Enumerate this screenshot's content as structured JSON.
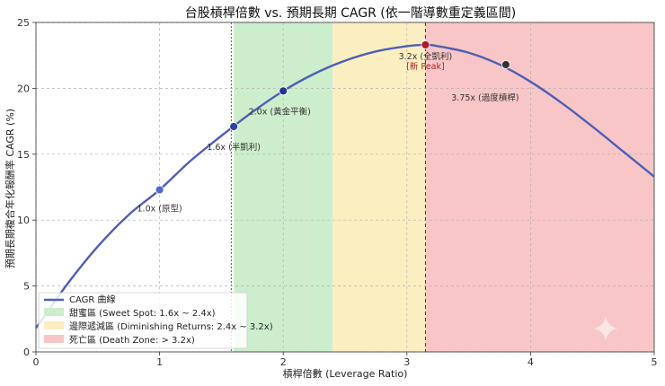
{
  "chart_data": {
    "type": "line",
    "title": "台股槓桿倍數 vs. 預期長期 CAGR (依一階導數重定義區間)",
    "xlabel": "槓桿倍數 (Leverage Ratio)",
    "ylabel": "預期長期複合年化報酬率 CAGR (%)",
    "xlim": [
      0,
      5
    ],
    "ylim": [
      0,
      25
    ],
    "xticks": [
      "0",
      "1",
      "2",
      "3",
      "4",
      "5"
    ],
    "yticks": [
      "0",
      "5",
      "10",
      "15",
      "20",
      "25"
    ],
    "grid": true,
    "legend_position": "bottom-left",
    "series": [
      {
        "name": "CAGR 曲線",
        "color": "#4e5fb5",
        "x": [
          0,
          0.25,
          0.5,
          0.75,
          1.0,
          1.25,
          1.5,
          1.75,
          2.0,
          2.25,
          2.5,
          2.75,
          3.0,
          3.15,
          3.25,
          3.5,
          3.75,
          4.0,
          4.25,
          4.5,
          4.75,
          5.0
        ],
        "y": [
          1.8,
          5.1,
          8.0,
          10.4,
          12.3,
          14.5,
          16.4,
          18.2,
          19.8,
          21.1,
          22.1,
          22.8,
          23.2,
          23.3,
          23.2,
          22.7,
          21.8,
          20.5,
          18.9,
          17.1,
          15.2,
          13.3
        ]
      }
    ],
    "zones": [
      {
        "label": "甜蜜區 (Sweet Spot: 1.6x ~ 2.4x)",
        "from": 1.6,
        "to": 2.4,
        "color": "#cdeecc"
      },
      {
        "label": "邊際遞減區 (Diminishing Returns: 2.4x ~ 3.2x)",
        "from": 2.4,
        "to": 3.15,
        "color": "#fbefc2"
      },
      {
        "label": "死亡區 (Death Zone: > 3.2x)",
        "from": 3.15,
        "to": 5.0,
        "color": "#f8c6c6"
      }
    ],
    "markers": [
      {
        "x": 1.0,
        "y": 12.3,
        "label": "1.0x (原型)",
        "color": "#4e6bd0"
      },
      {
        "x": 1.6,
        "y": 17.1,
        "label": "1.6x (半凱利)",
        "color": "#2a43a6"
      },
      {
        "x": 2.0,
        "y": 19.8,
        "label": "2.0x (黃金平衡)",
        "color": "#1f3590"
      },
      {
        "x": 3.15,
        "y": 23.3,
        "label": "3.2x (全凱利)",
        "label2": "[新 Peak]",
        "color": "#b0182a"
      },
      {
        "x": 3.8,
        "y": 21.8,
        "label": "3.75x (過度槓桿)",
        "color": "#333333"
      }
    ]
  }
}
